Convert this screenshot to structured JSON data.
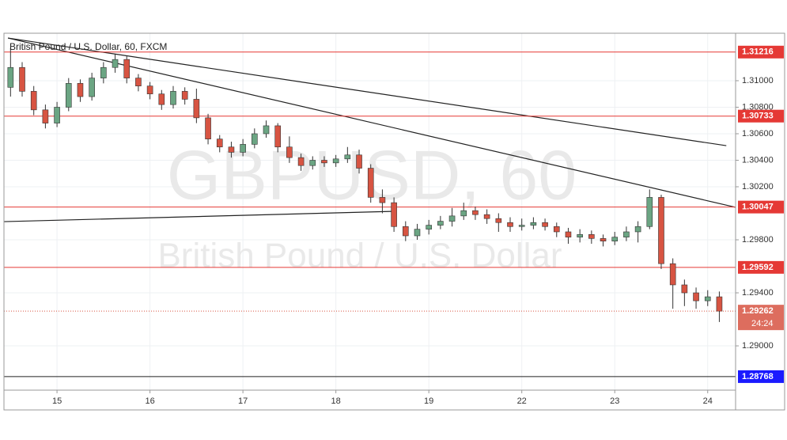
{
  "chart_data": {
    "type": "candlestick",
    "title": "British Pound / U.S. Dollar, 60, FXCM",
    "watermark": "GBPUSD, 60",
    "watermark_subtitle": "British Pound / U.S. Dollar",
    "countdown": "24:24",
    "x": [
      -12,
      -9,
      -6,
      -3,
      0,
      3,
      6,
      9,
      12,
      15,
      18,
      21,
      24,
      27,
      30,
      33,
      36,
      39,
      42,
      45,
      48,
      51,
      54,
      57,
      60,
      63,
      66,
      69,
      72,
      75,
      78,
      81,
      84,
      87,
      90,
      93,
      96,
      99,
      102,
      105,
      108,
      111,
      114,
      117,
      120,
      123,
      126,
      129,
      132,
      135,
      138,
      141,
      144,
      147,
      150,
      153,
      156,
      159,
      162,
      165,
      168,
      171
    ],
    "open": [
      1.3095,
      1.311,
      1.3092,
      1.3078,
      1.3068,
      1.308,
      1.3098,
      1.3088,
      1.3102,
      1.311,
      1.3116,
      1.3102,
      1.3096,
      1.309,
      1.3082,
      1.3092,
      1.3086,
      1.3072,
      1.3056,
      1.305,
      1.3046,
      1.3052,
      1.306,
      1.3066,
      1.305,
      1.3042,
      1.3036,
      1.304,
      1.3038,
      1.3041,
      1.3044,
      1.3034,
      1.3012,
      1.3008,
      1.299,
      1.2983,
      1.2988,
      1.2991,
      1.2994,
      1.2998,
      1.3002,
      1.2999,
      1.2996,
      1.2993,
      1.299,
      1.2991,
      1.2993,
      1.299,
      1.2986,
      1.2982,
      1.2984,
      1.2981,
      1.2979,
      1.2982,
      1.2986,
      1.299,
      1.3012,
      1.2962,
      1.2946,
      1.294,
      1.2934,
      1.2937
    ],
    "high": [
      1.3125,
      1.3114,
      1.3096,
      1.3082,
      1.3084,
      1.3102,
      1.3101,
      1.3106,
      1.3114,
      1.312,
      1.3119,
      1.3105,
      1.3099,
      1.3093,
      1.3096,
      1.3095,
      1.3094,
      1.3075,
      1.3059,
      1.3054,
      1.3056,
      1.3064,
      1.307,
      1.3068,
      1.3058,
      1.3045,
      1.3043,
      1.3043,
      1.3044,
      1.305,
      1.3048,
      1.3037,
      1.3018,
      1.3012,
      1.2994,
      1.2992,
      1.2995,
      1.2998,
      1.3004,
      1.3008,
      1.3005,
      1.3003,
      1.3,
      1.2997,
      1.2996,
      1.2997,
      1.2996,
      1.2993,
      1.2989,
      1.2988,
      1.2987,
      1.2984,
      1.2986,
      1.299,
      1.2994,
      1.3018,
      1.3014,
      1.2966,
      1.295,
      1.2944,
      1.2942,
      1.2941
    ],
    "low": [
      1.3088,
      1.3088,
      1.3074,
      1.3064,
      1.3065,
      1.3077,
      1.3084,
      1.3085,
      1.3098,
      1.3106,
      1.3098,
      1.3092,
      1.3086,
      1.3078,
      1.3079,
      1.3082,
      1.3068,
      1.3052,
      1.3046,
      1.3042,
      1.3043,
      1.3049,
      1.3057,
      1.3046,
      1.3038,
      1.3032,
      1.3033,
      1.3035,
      1.3035,
      1.3038,
      1.303,
      1.3008,
      1.3,
      1.2986,
      1.2979,
      1.298,
      1.2984,
      1.2988,
      1.299,
      1.2995,
      1.2995,
      1.2992,
      1.2986,
      1.2986,
      1.2987,
      1.2988,
      1.2987,
      1.2982,
      1.2977,
      1.2978,
      1.2977,
      1.2975,
      1.2976,
      1.2979,
      1.2978,
      1.2988,
      1.2958,
      1.2928,
      1.293,
      1.2928,
      1.293,
      1.2918
    ],
    "close": [
      1.311,
      1.3092,
      1.3078,
      1.3068,
      1.308,
      1.3098,
      1.3088,
      1.3102,
      1.311,
      1.3116,
      1.3102,
      1.3096,
      1.309,
      1.3082,
      1.3092,
      1.3086,
      1.3072,
      1.3056,
      1.305,
      1.3046,
      1.3052,
      1.306,
      1.3066,
      1.305,
      1.3042,
      1.3036,
      1.304,
      1.3038,
      1.3041,
      1.3044,
      1.3034,
      1.3012,
      1.3008,
      1.299,
      1.2983,
      1.2988,
      1.2991,
      1.2994,
      1.2998,
      1.3002,
      1.2999,
      1.2996,
      1.2993,
      1.299,
      1.2991,
      1.2993,
      1.299,
      1.2986,
      1.2982,
      1.2984,
      1.2981,
      1.2979,
      1.2982,
      1.2986,
      1.299,
      1.3012,
      1.2962,
      1.2946,
      1.294,
      1.2934,
      1.2937,
      1.29262
    ],
    "up_color": "#6ba583",
    "down_color": "#d75442",
    "xlim": [
      -13.7,
      175.2
    ],
    "ylim": [
      1.28666,
      1.31358
    ],
    "xticks": [
      {
        "value": 0,
        "label": "15"
      },
      {
        "value": 24,
        "label": "16"
      },
      {
        "value": 48,
        "label": "17"
      },
      {
        "value": 72,
        "label": "18"
      },
      {
        "value": 96,
        "label": "19"
      },
      {
        "value": 120,
        "label": "22"
      },
      {
        "value": 144,
        "label": "23"
      },
      {
        "value": 168,
        "label": "24"
      }
    ],
    "yticks": [
      {
        "value": 1.29,
        "label": "1.29000"
      },
      {
        "value": 1.294,
        "label": "1.29400"
      },
      {
        "value": 1.298,
        "label": "1.29800"
      },
      {
        "value": 1.302,
        "label": "1.30200"
      },
      {
        "value": 1.304,
        "label": "1.30400"
      },
      {
        "value": 1.306,
        "label": "1.30600"
      },
      {
        "value": 1.308,
        "label": "1.30800"
      },
      {
        "value": 1.31,
        "label": "1.31000"
      }
    ],
    "grid": true,
    "levels": [
      {
        "value": 1.31216,
        "color": "#e53935"
      },
      {
        "value": 1.30733,
        "color": "#e53935"
      },
      {
        "value": 1.30047,
        "color": "#e53935"
      },
      {
        "value": 1.29592,
        "color": "#e53935"
      },
      {
        "value": 1.28768,
        "color": "#1a1aff"
      }
    ],
    "trendlines": [
      {
        "x": [
          -12.66,
          172.8
        ],
        "y": [
          1.31322,
          1.3051
        ]
      },
      {
        "x": [
          -12.66,
          175.2
        ],
        "y": [
          1.31322,
          1.30045
        ]
      },
      {
        "x": [
          -13.7,
          87.4
        ],
        "y": [
          1.29937,
          1.30015
        ]
      }
    ]
  }
}
